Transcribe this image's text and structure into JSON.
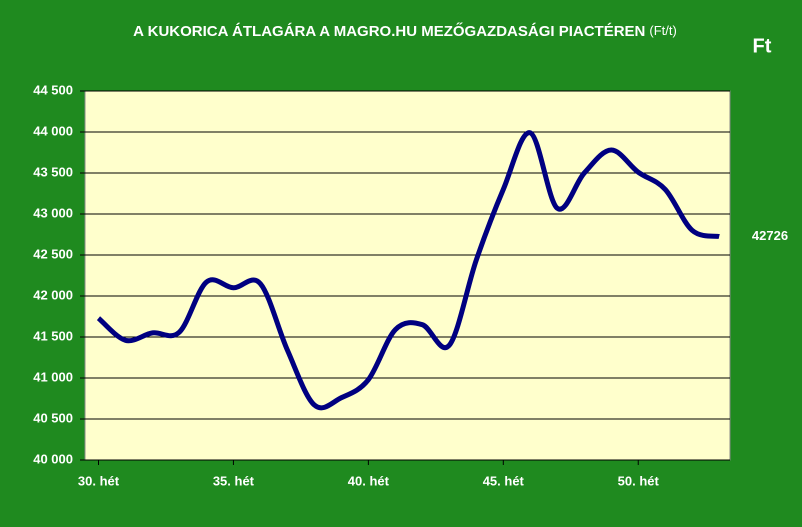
{
  "chart_data": {
    "type": "line",
    "title": "A KUKORICA ÁTLAGÁRA A MAGRO.HU MEZŐGAZDASÁGI PIACTÉREN",
    "title_unit": "(Ft/t)",
    "corner_label": "Ft",
    "x": [
      30,
      31,
      32,
      33,
      34,
      35,
      36,
      37,
      38,
      39,
      40,
      41,
      42,
      43,
      44,
      45,
      46,
      47,
      48,
      49,
      50,
      51,
      52,
      53
    ],
    "series": [
      {
        "color": "#000080",
        "values": [
          41730,
          41460,
          41550,
          41560,
          42170,
          42100,
          42150,
          41340,
          40670,
          40760,
          40980,
          41590,
          41650,
          41400,
          42440,
          43300,
          43990,
          43070,
          43500,
          43780,
          43510,
          43300,
          42800,
          42726
        ]
      }
    ],
    "xlim": [
      29.5,
      53.4
    ],
    "xticks": [
      {
        "value": 30,
        "label": "30. hét"
      },
      {
        "value": 35,
        "label": "35. hét"
      },
      {
        "value": 40,
        "label": "40. hét"
      },
      {
        "value": 45,
        "label": "45. hét"
      },
      {
        "value": 50,
        "label": "50. hét"
      }
    ],
    "ylim": [
      40000,
      44500
    ],
    "yticks": [
      {
        "value": 40000,
        "label": "40 000"
      },
      {
        "value": 40500,
        "label": "40 500"
      },
      {
        "value": 41000,
        "label": "41 000"
      },
      {
        "value": 41500,
        "label": "41 500"
      },
      {
        "value": 42000,
        "label": "42 000"
      },
      {
        "value": 42500,
        "label": "42 500"
      },
      {
        "value": 43000,
        "label": "43 000"
      },
      {
        "value": 43500,
        "label": "43 500"
      },
      {
        "value": 44000,
        "label": "44 000"
      },
      {
        "value": 44500,
        "label": "44 500"
      }
    ],
    "grid": true,
    "smooth": true
  }
}
